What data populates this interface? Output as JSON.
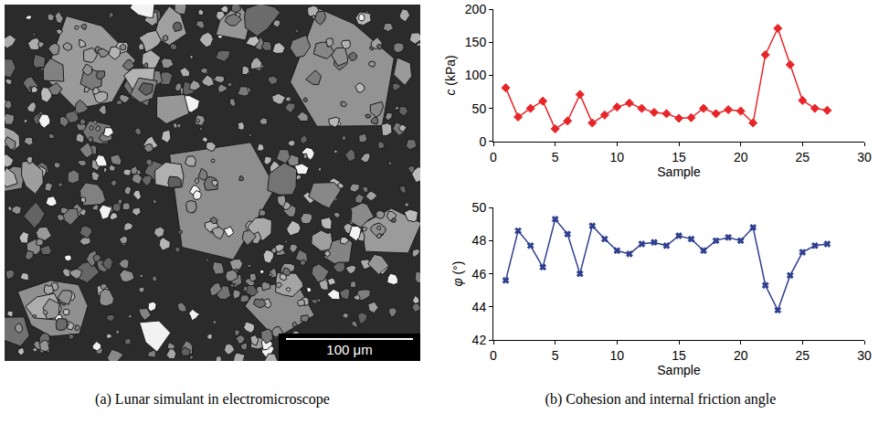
{
  "image_panel": {
    "scale_bar": "100 μm",
    "caption": "(a) Lunar simulant in electromicroscope"
  },
  "chart_caption": "(b) Cohesion and internal friction angle",
  "chart_data": [
    {
      "type": "line",
      "x_label": "Sample",
      "y_label": "c (kPa)",
      "x": [
        1,
        2,
        3,
        4,
        5,
        6,
        7,
        8,
        9,
        10,
        11,
        12,
        13,
        14,
        15,
        16,
        17,
        18,
        19,
        20,
        21,
        22,
        23,
        24,
        25,
        26,
        27
      ],
      "values": [
        81,
        37,
        50,
        61,
        19,
        31,
        71,
        28,
        40,
        52,
        58,
        50,
        44,
        42,
        35,
        36,
        50,
        42,
        48,
        46,
        28,
        131,
        171,
        116,
        62,
        50,
        47
      ],
      "color": "#e8262a",
      "marker": "diamond",
      "xlim": [
        0,
        30
      ],
      "xticks": [
        0,
        5,
        10,
        15,
        20,
        25,
        30
      ],
      "ylim": [
        0,
        200
      ],
      "yticks": [
        0,
        50,
        100,
        150,
        200
      ],
      "grid": false
    },
    {
      "type": "line",
      "x_label": "Sample",
      "y_label": "φ (°)",
      "x": [
        1,
        2,
        3,
        4,
        5,
        6,
        7,
        8,
        9,
        10,
        11,
        12,
        13,
        14,
        15,
        16,
        17,
        18,
        19,
        20,
        21,
        22,
        23,
        24,
        25,
        26,
        27
      ],
      "values": [
        45.6,
        48.6,
        47.7,
        46.4,
        49.3,
        48.4,
        46.0,
        48.9,
        48.1,
        47.4,
        47.2,
        47.8,
        47.9,
        47.7,
        48.3,
        48.1,
        47.4,
        48.0,
        48.2,
        48.0,
        48.8,
        45.3,
        43.8,
        45.9,
        47.3,
        47.7,
        47.8
      ],
      "color": "#2e3f8f",
      "marker": "x",
      "xlim": [
        0,
        30
      ],
      "xticks": [
        0,
        5,
        10,
        15,
        20,
        25,
        30
      ],
      "ylim": [
        42,
        50
      ],
      "yticks": [
        42,
        44,
        46,
        48,
        50
      ],
      "grid": false
    }
  ]
}
